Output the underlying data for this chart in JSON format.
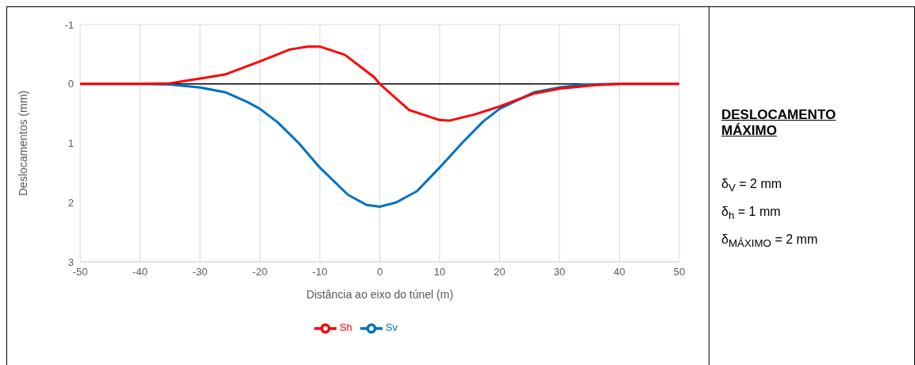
{
  "chart_data": {
    "type": "line",
    "xlabel": "Distância ao eixo do túnel (m)",
    "ylabel": "Deslocamentos (mm)",
    "xlim": [
      -50,
      50
    ],
    "xticks": [
      -50,
      -40,
      -30,
      -20,
      -10,
      0,
      10,
      20,
      30,
      40,
      50
    ],
    "ylim": [
      3,
      -1
    ],
    "yticks": [
      -1,
      0,
      1,
      2,
      3
    ],
    "grid": true,
    "legend": "bottom",
    "marker": "none",
    "line_style": "solid",
    "ref_lines": [
      {
        "axis": "y",
        "value": 0,
        "color": "#000000"
      }
    ],
    "series": [
      {
        "name": "Sv",
        "color": "#0070c0",
        "x": [
          -50,
          -40,
          -35,
          -30,
          -25.8,
          -22,
          -20,
          -17,
          -13.5,
          -10,
          -5.3,
          -2.2,
          0,
          2.7,
          6.2,
          10,
          13.8,
          17.3,
          20,
          25.8,
          30,
          34,
          40,
          50
        ],
        "values": [
          0,
          0,
          0.01,
          0.06,
          0.14,
          0.31,
          0.42,
          0.65,
          1.0,
          1.41,
          1.87,
          2.04,
          2.07,
          2.0,
          1.81,
          1.41,
          0.99,
          0.63,
          0.42,
          0.14,
          0.06,
          0.01,
          0,
          0
        ]
      },
      {
        "name": "Sh",
        "color": "#ff0000",
        "x": [
          -50,
          -40,
          -35,
          -30,
          -25.8,
          -20,
          -15,
          -12,
          -10,
          -5.8,
          -0.9,
          0,
          4.9,
          10,
          11.6,
          16,
          20,
          25.8,
          30,
          36,
          40,
          50
        ],
        "values": [
          0,
          0,
          -0.01,
          -0.09,
          -0.16,
          -0.38,
          -0.58,
          -0.63,
          -0.63,
          -0.49,
          -0.11,
          0,
          0.44,
          0.61,
          0.62,
          0.51,
          0.38,
          0.16,
          0.08,
          0.02,
          0,
          0
        ]
      }
    ],
    "annotations": [
      "DESLOCAMENTO MÁXIMO",
      "δ$_{V}$ = 2 mm",
      "δ$_{h}$ = 1 mm",
      "δ$_{MÁXIMO}$ = 2 mm"
    ]
  }
}
